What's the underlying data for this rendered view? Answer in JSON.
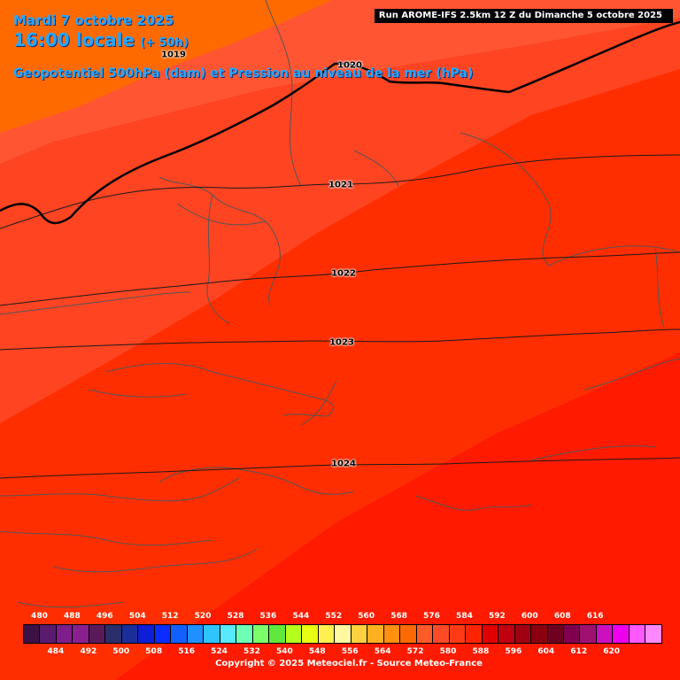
{
  "header": {
    "date": "Mardi 7 octobre 2025",
    "time": "16:00 locale",
    "lead": "(+ 50h)",
    "field": "Geopotentiel 500hPa (dam) et Pression au niveau de la mer (hPa)"
  },
  "run": "Run AROME-IFS 2.5km 12 Z du Dimanche 5 octobre 2025",
  "isobars": [
    "1019",
    "1020",
    "1021",
    "1022",
    "1023",
    "1024"
  ],
  "legend": {
    "top_labels": [
      "480",
      "488",
      "496",
      "504",
      "512",
      "520",
      "528",
      "536",
      "544",
      "552",
      "560",
      "568",
      "576",
      "584",
      "592",
      "600",
      "608",
      "616"
    ],
    "bottom_labels": [
      "484",
      "492",
      "500",
      "508",
      "516",
      "524",
      "532",
      "540",
      "548",
      "556",
      "564",
      "572",
      "580",
      "588",
      "596",
      "604",
      "612",
      "620"
    ],
    "colors": [
      "#3c1146",
      "#5a1a6e",
      "#7d1e8c",
      "#8a1f8f",
      "#5a1a5a",
      "#2a2f6b",
      "#1a2e9a",
      "#0c1ed6",
      "#0a2cff",
      "#1260ff",
      "#1e90ff",
      "#2ec4ff",
      "#58e8ff",
      "#6effb4",
      "#7cff6a",
      "#60e83c",
      "#b4ff1e",
      "#e8ff14",
      "#fff050",
      "#fff8a0",
      "#ffd040",
      "#ffb020",
      "#ff9010",
      "#ff6a00",
      "#ff5a2a",
      "#ff4a28",
      "#ff3a14",
      "#ff2400",
      "#e00000",
      "#c00010",
      "#a00010",
      "#8a0010",
      "#6e0020",
      "#800050",
      "#a01070",
      "#cc10c0",
      "#ee00ee",
      "#ff58ff",
      "#ff88ff"
    ],
    "band_colors": {
      "564": "#ff6a00",
      "568": "#ff5533",
      "572": "#ff4422",
      "576": "#ff2e00",
      "580": "#ff1a00",
      "584": "#ff0000"
    }
  },
  "copyright": "Copyright © 2025 Meteociel.fr - Source Meteo-France"
}
